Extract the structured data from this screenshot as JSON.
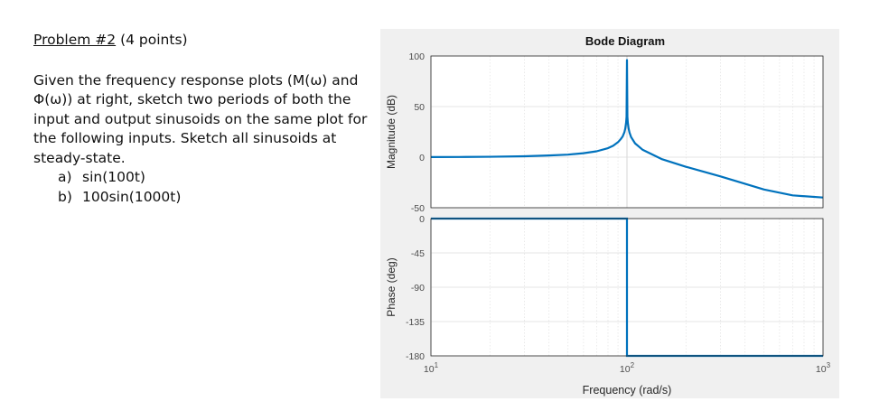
{
  "problem": {
    "number_label": "Problem #2",
    "points_label": "(4 points)",
    "body": "Given the frequency response plots (M(ω) and Φ(ω)) at right, sketch two periods of both the input and output sinusoids on the same plot for the following inputs.  Sketch all sinusoids at steady-state.",
    "parts": [
      {
        "letter": "a)",
        "text": "sin(100t)"
      },
      {
        "letter": "b)",
        "text": "100sin(1000t)"
      }
    ]
  },
  "chart_data": [
    {
      "type": "line",
      "title": "Bode Diagram",
      "xlabel": "",
      "ylabel": "Magnitude (dB)",
      "xscale": "log",
      "xlim": [
        10,
        1000
      ],
      "ylim": [
        -50,
        100
      ],
      "yticks": [
        -50,
        0,
        50,
        100
      ],
      "grid": true,
      "color": "#0072BD",
      "series": [
        {
          "x": [
            10,
            15,
            20,
            30,
            40,
            50,
            60,
            70,
            80,
            85,
            90,
            93,
            95,
            97,
            98,
            99,
            99.5,
            100,
            100.5,
            101,
            102,
            103,
            105,
            110,
            120,
            150,
            200,
            300,
            500,
            700,
            1000
          ],
          "y": [
            0.1,
            0.2,
            0.4,
            0.9,
            1.7,
            2.5,
            3.9,
            5.8,
            8.9,
            11.3,
            14.8,
            17.9,
            20.4,
            24.6,
            28.2,
            34.2,
            40,
            96,
            40,
            34,
            28,
            24.3,
            19.8,
            13.6,
            7.4,
            -1.8,
            -9.5,
            -19,
            -32,
            -37.8,
            -39.9
          ]
        }
      ]
    },
    {
      "type": "line",
      "xlabel": "Frequency  (rad/s)",
      "ylabel": "Phase (deg)",
      "xscale": "log",
      "xlim": [
        10,
        1000
      ],
      "xticks": [
        {
          "base": "10",
          "exp": "1"
        },
        {
          "base": "10",
          "exp": "2"
        },
        {
          "base": "10",
          "exp": "3"
        }
      ],
      "ylim": [
        -180,
        0
      ],
      "yticks": [
        -180,
        -135,
        -90,
        -45,
        0
      ],
      "grid": true,
      "color": "#0072BD",
      "series": [
        {
          "x": [
            10,
            100,
            100,
            1000
          ],
          "y": [
            0,
            0,
            -180,
            -180
          ]
        }
      ]
    }
  ]
}
